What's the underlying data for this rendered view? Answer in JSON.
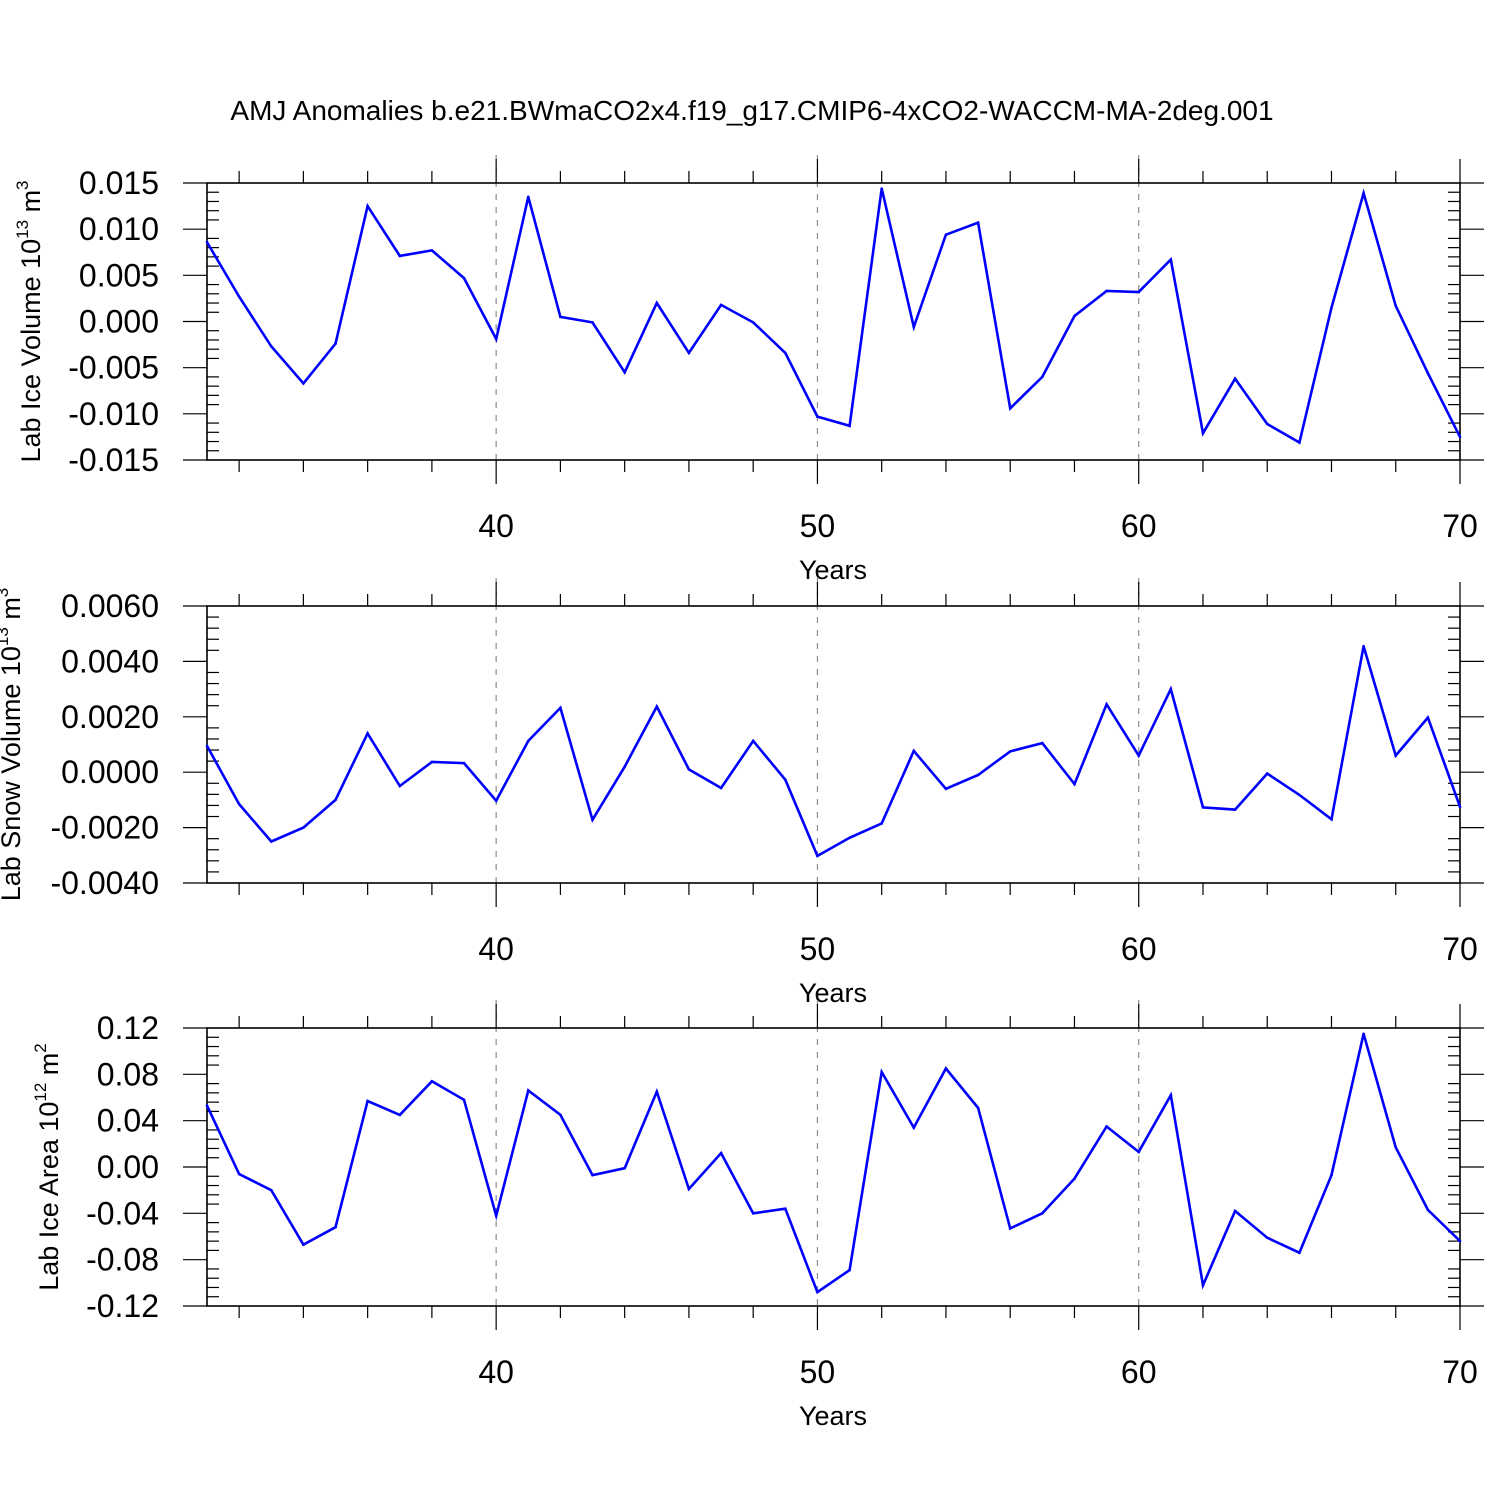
{
  "title": "AMJ Anomalies b.e21.BWmaCO2x4.f19_g17.CMIP6-4xCO2-WACCM-MA-2deg.001",
  "colors": {
    "line": "#0000ff",
    "frame": "#000000",
    "grid": "#8c8c8c"
  },
  "chart_data": [
    {
      "type": "line",
      "ylabel": "Lab Ice Volume",
      "ylabel_unit_base": "10",
      "ylabel_unit_exp": "13",
      "ylabel_unit_symbol": "m",
      "ylabel_unit_symbol_exp": "3",
      "xlabel": "Years",
      "xlim": [
        31,
        70
      ],
      "ylim": [
        -0.015,
        0.015
      ],
      "xticks": [
        40,
        50,
        60,
        70
      ],
      "xtick_labels": [
        "40",
        "50",
        "60",
        "70"
      ],
      "yticks": [
        -0.015,
        -0.01,
        -0.005,
        0,
        0.005,
        0.01,
        0.015
      ],
      "ytick_labels": [
        "-0.015",
        "-0.010",
        "-0.005",
        "0.000",
        "0.005",
        "0.010",
        "0.015"
      ],
      "grid_x": [
        40,
        50,
        60
      ],
      "x": [
        31,
        32,
        33,
        34,
        35,
        36,
        37,
        38,
        39,
        40,
        41,
        42,
        43,
        44,
        45,
        46,
        47,
        48,
        49,
        50,
        51,
        52,
        53,
        54,
        55,
        56,
        57,
        58,
        59,
        60,
        61,
        62,
        63,
        64,
        65,
        66,
        67,
        68,
        69,
        70
      ],
      "y": [
        0.0086,
        0.0027,
        -0.0027,
        -0.0067,
        -0.0024,
        0.0125,
        0.0071,
        0.0077,
        0.0047,
        -0.0019,
        0.0135,
        0.0005,
        -0.0001,
        -0.0055,
        0.002,
        -0.0034,
        0.0018,
        -0.0001,
        -0.0034,
        -0.0103,
        -0.0113,
        0.0144,
        -0.0006,
        0.0094,
        0.0107,
        -0.0094,
        -0.006,
        0.0006,
        0.0033,
        0.0032,
        0.0067,
        -0.0121,
        -0.0062,
        -0.0111,
        -0.0131,
        0.0015,
        0.0139,
        0.0017,
        -0.0056,
        -0.0125
      ]
    },
    {
      "type": "line",
      "ylabel": "Lab Snow Volume",
      "ylabel_unit_base": "10",
      "ylabel_unit_exp": "13",
      "ylabel_unit_symbol": "m",
      "ylabel_unit_symbol_exp": "3",
      "xlabel": "Years",
      "xlim": [
        31,
        70
      ],
      "ylim": [
        -0.004,
        0.006
      ],
      "xticks": [
        40,
        50,
        60,
        70
      ],
      "xtick_labels": [
        "40",
        "50",
        "60",
        "70"
      ],
      "yticks": [
        -0.004,
        -0.002,
        0,
        0.002,
        0.004,
        0.006
      ],
      "ytick_labels": [
        "-0.0040",
        "-0.0020",
        "0.0000",
        "0.0020",
        "0.0040",
        "0.0060"
      ],
      "grid_x": [
        40,
        50,
        60
      ],
      "x": [
        31,
        32,
        33,
        34,
        35,
        36,
        37,
        38,
        39,
        40,
        41,
        42,
        43,
        44,
        45,
        46,
        47,
        48,
        49,
        50,
        51,
        52,
        53,
        54,
        55,
        56,
        57,
        58,
        59,
        60,
        61,
        62,
        63,
        64,
        65,
        66,
        67,
        68,
        69,
        70
      ],
      "y": [
        0.00095,
        -0.00115,
        -0.0025,
        -0.002,
        -0.001,
        0.0014,
        -0.0005,
        0.00037,
        0.00033,
        -0.00103,
        0.00113,
        0.00232,
        -0.00172,
        0.0002,
        0.00237,
        0.0001,
        -0.00057,
        0.00113,
        -0.00027,
        -0.00302,
        -0.00237,
        -0.00185,
        0.00077,
        -0.0006,
        -0.0001,
        0.00075,
        0.00105,
        -0.00043,
        0.00245,
        0.0006,
        0.003,
        -0.00127,
        -0.00135,
        -5e-05,
        -0.00082,
        -0.0017,
        0.00455,
        0.0006,
        0.00197,
        -0.00125
      ]
    },
    {
      "type": "line",
      "ylabel": "Lab Ice Area",
      "ylabel_unit_base": "10",
      "ylabel_unit_exp": "12",
      "ylabel_unit_symbol": "m",
      "ylabel_unit_symbol_exp": "2",
      "xlabel": "Years",
      "xlim": [
        31,
        70
      ],
      "ylim": [
        -0.12,
        0.12
      ],
      "xticks": [
        40,
        50,
        60,
        70
      ],
      "xtick_labels": [
        "40",
        "50",
        "60",
        "70"
      ],
      "yticks": [
        -0.12,
        -0.08,
        -0.04,
        0,
        0.04,
        0.08,
        0.12
      ],
      "ytick_labels": [
        "-0.12",
        "-0.08",
        "-0.04",
        "0.00",
        "0.04",
        "0.08",
        "0.12"
      ],
      "grid_x": [
        40,
        50,
        60
      ],
      "x": [
        31,
        32,
        33,
        34,
        35,
        36,
        37,
        38,
        39,
        40,
        41,
        42,
        43,
        44,
        45,
        46,
        47,
        48,
        49,
        50,
        51,
        52,
        53,
        54,
        55,
        56,
        57,
        58,
        59,
        60,
        61,
        62,
        63,
        64,
        65,
        66,
        67,
        68,
        69,
        70
      ],
      "y": [
        0.053,
        -0.006,
        -0.02,
        -0.067,
        -0.052,
        0.057,
        0.045,
        0.074,
        0.058,
        -0.042,
        0.066,
        0.045,
        -0.007,
        -0.001,
        0.065,
        -0.019,
        0.012,
        -0.04,
        -0.036,
        -0.108,
        -0.089,
        0.082,
        0.034,
        0.085,
        0.051,
        -0.053,
        -0.04,
        -0.01,
        0.035,
        0.013,
        0.062,
        -0.102,
        -0.038,
        -0.061,
        -0.074,
        -0.007,
        0.115,
        0.017,
        -0.037,
        -0.064
      ]
    }
  ]
}
